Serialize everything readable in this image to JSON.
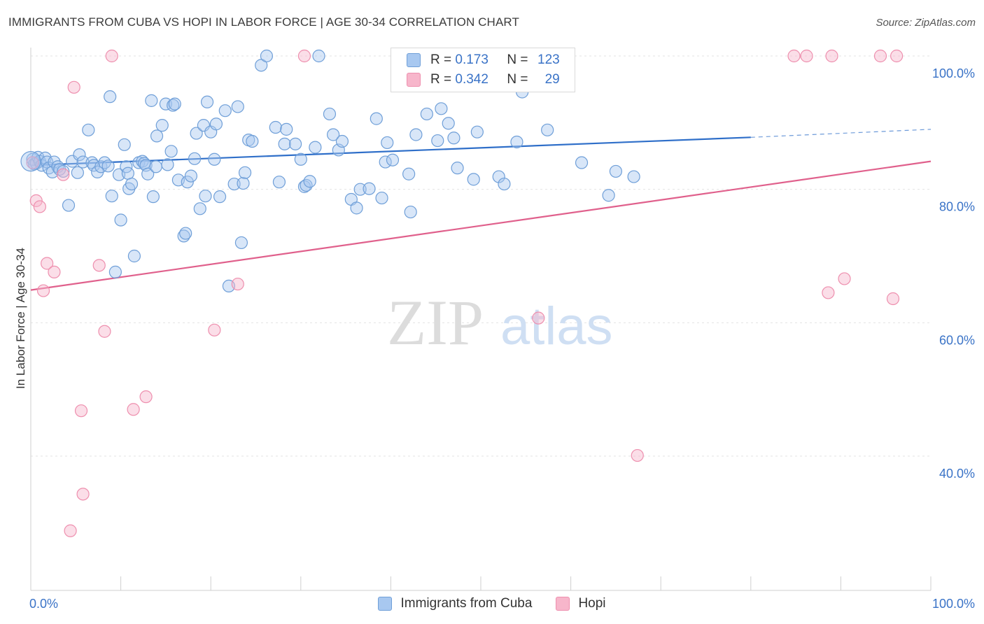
{
  "header": {
    "title": "IMMIGRANTS FROM CUBA VS HOPI IN LABOR FORCE | AGE 30-34 CORRELATION CHART",
    "source": "Source: ZipAtlas.com"
  },
  "watermark": {
    "zip": "ZIP",
    "atlas": "atlas"
  },
  "legend_top": {
    "r_label": "R = ",
    "n_label": "N = ",
    "series": [
      {
        "r": "0.173",
        "n": "123"
      },
      {
        "r": "0.342",
        "n": "29"
      }
    ]
  },
  "colors": {
    "cuba_fill": "#a8c8f0",
    "cuba_stroke": "#6f9fd8",
    "cuba_line": "#2f6fc9",
    "hopi_fill": "#f7b6cb",
    "hopi_stroke": "#ee8fae",
    "hopi_line": "#e0608c",
    "tick_label": "#3a73c7"
  },
  "chart_data": {
    "type": "scatter",
    "title": "IMMIGRANTS FROM CUBA VS HOPI IN LABOR FORCE | AGE 30-34 CORRELATION CHART",
    "xlabel": "",
    "ylabel": "In Labor Force | Age 30-34",
    "xlim": [
      0,
      100
    ],
    "ylim": [
      20,
      102
    ],
    "x_tick_labels": [
      "0.0%",
      "100.0%"
    ],
    "y_ticks": [
      40,
      60,
      80,
      100
    ],
    "y_tick_labels": [
      "40.0%",
      "60.0%",
      "80.0%",
      "100.0%"
    ],
    "series": [
      {
        "name": "Immigrants from Cuba",
        "r": 0.173,
        "n": 123,
        "trend": {
          "x0": 0,
          "y0": 83.6,
          "x1": 80,
          "y1": 87.8,
          "dash_to": 100,
          "dash_y": 89.0
        },
        "points": [
          [
            0.2,
            84.5
          ],
          [
            0.4,
            83.8
          ],
          [
            0.6,
            83.9
          ],
          [
            0.8,
            84.8
          ],
          [
            1.0,
            84.2
          ],
          [
            1.2,
            83.6
          ],
          [
            1.6,
            84.7
          ],
          [
            1.8,
            84.1
          ],
          [
            2.0,
            83.2
          ],
          [
            2.4,
            82.6
          ],
          [
            2.6,
            84.1
          ],
          [
            3.0,
            83.4
          ],
          [
            3.2,
            83.0
          ],
          [
            3.6,
            82.7
          ],
          [
            4.2,
            77.6
          ],
          [
            4.6,
            84.2
          ],
          [
            5.2,
            82.5
          ],
          [
            5.4,
            85.2
          ],
          [
            5.8,
            84.1
          ],
          [
            6.4,
            88.9
          ],
          [
            6.8,
            84.0
          ],
          [
            7.0,
            83.6
          ],
          [
            7.4,
            82.6
          ],
          [
            7.8,
            83.4
          ],
          [
            8.2,
            84.0
          ],
          [
            8.6,
            83.5
          ],
          [
            8.8,
            93.9
          ],
          [
            9.0,
            79.0
          ],
          [
            9.4,
            67.6
          ],
          [
            9.8,
            82.2
          ],
          [
            10.0,
            75.4
          ],
          [
            10.4,
            86.7
          ],
          [
            10.6,
            83.4
          ],
          [
            10.8,
            82.4
          ],
          [
            10.9,
            80.1
          ],
          [
            11.2,
            80.8
          ],
          [
            11.5,
            70.0
          ],
          [
            12.0,
            84.0
          ],
          [
            12.4,
            84.2
          ],
          [
            12.6,
            83.9
          ],
          [
            12.8,
            83.6
          ],
          [
            13.0,
            82.3
          ],
          [
            13.4,
            93.3
          ],
          [
            13.6,
            78.9
          ],
          [
            13.9,
            83.4
          ],
          [
            14.0,
            88.0
          ],
          [
            14.6,
            89.6
          ],
          [
            15.0,
            92.8
          ],
          [
            15.2,
            83.7
          ],
          [
            15.6,
            85.7
          ],
          [
            15.8,
            92.6
          ],
          [
            16.0,
            92.8
          ],
          [
            16.4,
            81.4
          ],
          [
            17.0,
            73.0
          ],
          [
            17.2,
            73.4
          ],
          [
            17.4,
            81.1
          ],
          [
            17.8,
            82.0
          ],
          [
            18.2,
            84.6
          ],
          [
            18.4,
            88.4
          ],
          [
            18.8,
            77.1
          ],
          [
            19.2,
            89.6
          ],
          [
            19.4,
            79.0
          ],
          [
            19.6,
            93.1
          ],
          [
            20.0,
            88.6
          ],
          [
            20.4,
            84.5
          ],
          [
            20.6,
            89.8
          ],
          [
            21.0,
            78.9
          ],
          [
            21.6,
            91.8
          ],
          [
            22.0,
            65.5
          ],
          [
            22.6,
            80.8
          ],
          [
            23.0,
            92.4
          ],
          [
            23.4,
            72.0
          ],
          [
            23.6,
            80.9
          ],
          [
            23.8,
            82.5
          ],
          [
            24.2,
            87.4
          ],
          [
            24.6,
            87.2
          ],
          [
            25.6,
            98.6
          ],
          [
            26.2,
            100.0
          ],
          [
            27.2,
            89.3
          ],
          [
            27.6,
            81.1
          ],
          [
            28.2,
            86.8
          ],
          [
            28.4,
            89.0
          ],
          [
            29.4,
            86.8
          ],
          [
            30.0,
            84.5
          ],
          [
            30.4,
            80.4
          ],
          [
            30.6,
            80.6
          ],
          [
            31.0,
            81.2
          ],
          [
            31.6,
            86.3
          ],
          [
            32.0,
            100.0
          ],
          [
            33.2,
            91.3
          ],
          [
            33.6,
            88.2
          ],
          [
            34.2,
            85.9
          ],
          [
            34.6,
            87.2
          ],
          [
            35.6,
            78.5
          ],
          [
            36.2,
            77.2
          ],
          [
            36.6,
            80.0
          ],
          [
            37.6,
            80.1
          ],
          [
            38.4,
            90.6
          ],
          [
            39.0,
            78.7
          ],
          [
            39.4,
            84.1
          ],
          [
            39.6,
            87.0
          ],
          [
            40.2,
            84.4
          ],
          [
            42.0,
            82.3
          ],
          [
            42.2,
            76.6
          ],
          [
            42.8,
            88.2
          ],
          [
            44.0,
            91.3
          ],
          [
            45.2,
            87.3
          ],
          [
            45.6,
            92.1
          ],
          [
            46.4,
            89.9
          ],
          [
            47.0,
            87.7
          ],
          [
            47.4,
            83.2
          ],
          [
            49.2,
            81.5
          ],
          [
            49.6,
            88.6
          ],
          [
            52.0,
            81.9
          ],
          [
            52.6,
            80.8
          ],
          [
            54.0,
            87.1
          ],
          [
            54.6,
            94.6
          ],
          [
            57.4,
            88.9
          ],
          [
            61.2,
            84.0
          ],
          [
            64.2,
            79.1
          ],
          [
            65.0,
            82.7
          ],
          [
            67.0,
            81.9
          ]
        ]
      },
      {
        "name": "Hopi",
        "r": 0.342,
        "n": 29,
        "trend": {
          "x0": 0,
          "y0": 64.9,
          "x1": 100,
          "y1": 84.2
        },
        "points": [
          [
            0.2,
            84.0
          ],
          [
            0.6,
            78.3
          ],
          [
            1.0,
            77.4
          ],
          [
            1.4,
            64.8
          ],
          [
            1.8,
            68.9
          ],
          [
            2.6,
            67.6
          ],
          [
            3.6,
            82.2
          ],
          [
            4.4,
            28.8
          ],
          [
            4.8,
            95.3
          ],
          [
            5.6,
            46.8
          ],
          [
            5.8,
            34.3
          ],
          [
            7.6,
            68.6
          ],
          [
            8.2,
            58.7
          ],
          [
            9.0,
            100.0
          ],
          [
            11.4,
            47.0
          ],
          [
            12.8,
            48.9
          ],
          [
            20.4,
            58.9
          ],
          [
            23.0,
            65.8
          ],
          [
            30.4,
            100.0
          ],
          [
            56.4,
            60.7
          ],
          [
            67.4,
            40.1
          ],
          [
            84.8,
            100.0
          ],
          [
            86.2,
            100.0
          ],
          [
            88.6,
            64.5
          ],
          [
            89.0,
            100.0
          ],
          [
            90.4,
            66.6
          ],
          [
            94.4,
            100.0
          ],
          [
            95.8,
            63.6
          ],
          [
            96.2,
            100.0
          ]
        ]
      }
    ],
    "legend": [
      "Immigrants from Cuba",
      "Hopi"
    ]
  }
}
